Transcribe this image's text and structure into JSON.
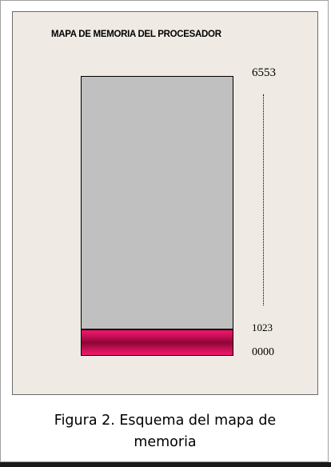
{
  "diagram": {
    "title": "MAPA DE MEMORIA DEL PROCESADOR",
    "address_top": "6553",
    "address_boundary": "1023",
    "address_bottom": "0000",
    "colors": {
      "panel_background": "#efebe4",
      "memory_block": "#c0c0c0",
      "reserved_block": "#d1105a"
    }
  },
  "caption": {
    "line1": "Figura 2. Esquema del mapa de",
    "line2": "memoria"
  }
}
